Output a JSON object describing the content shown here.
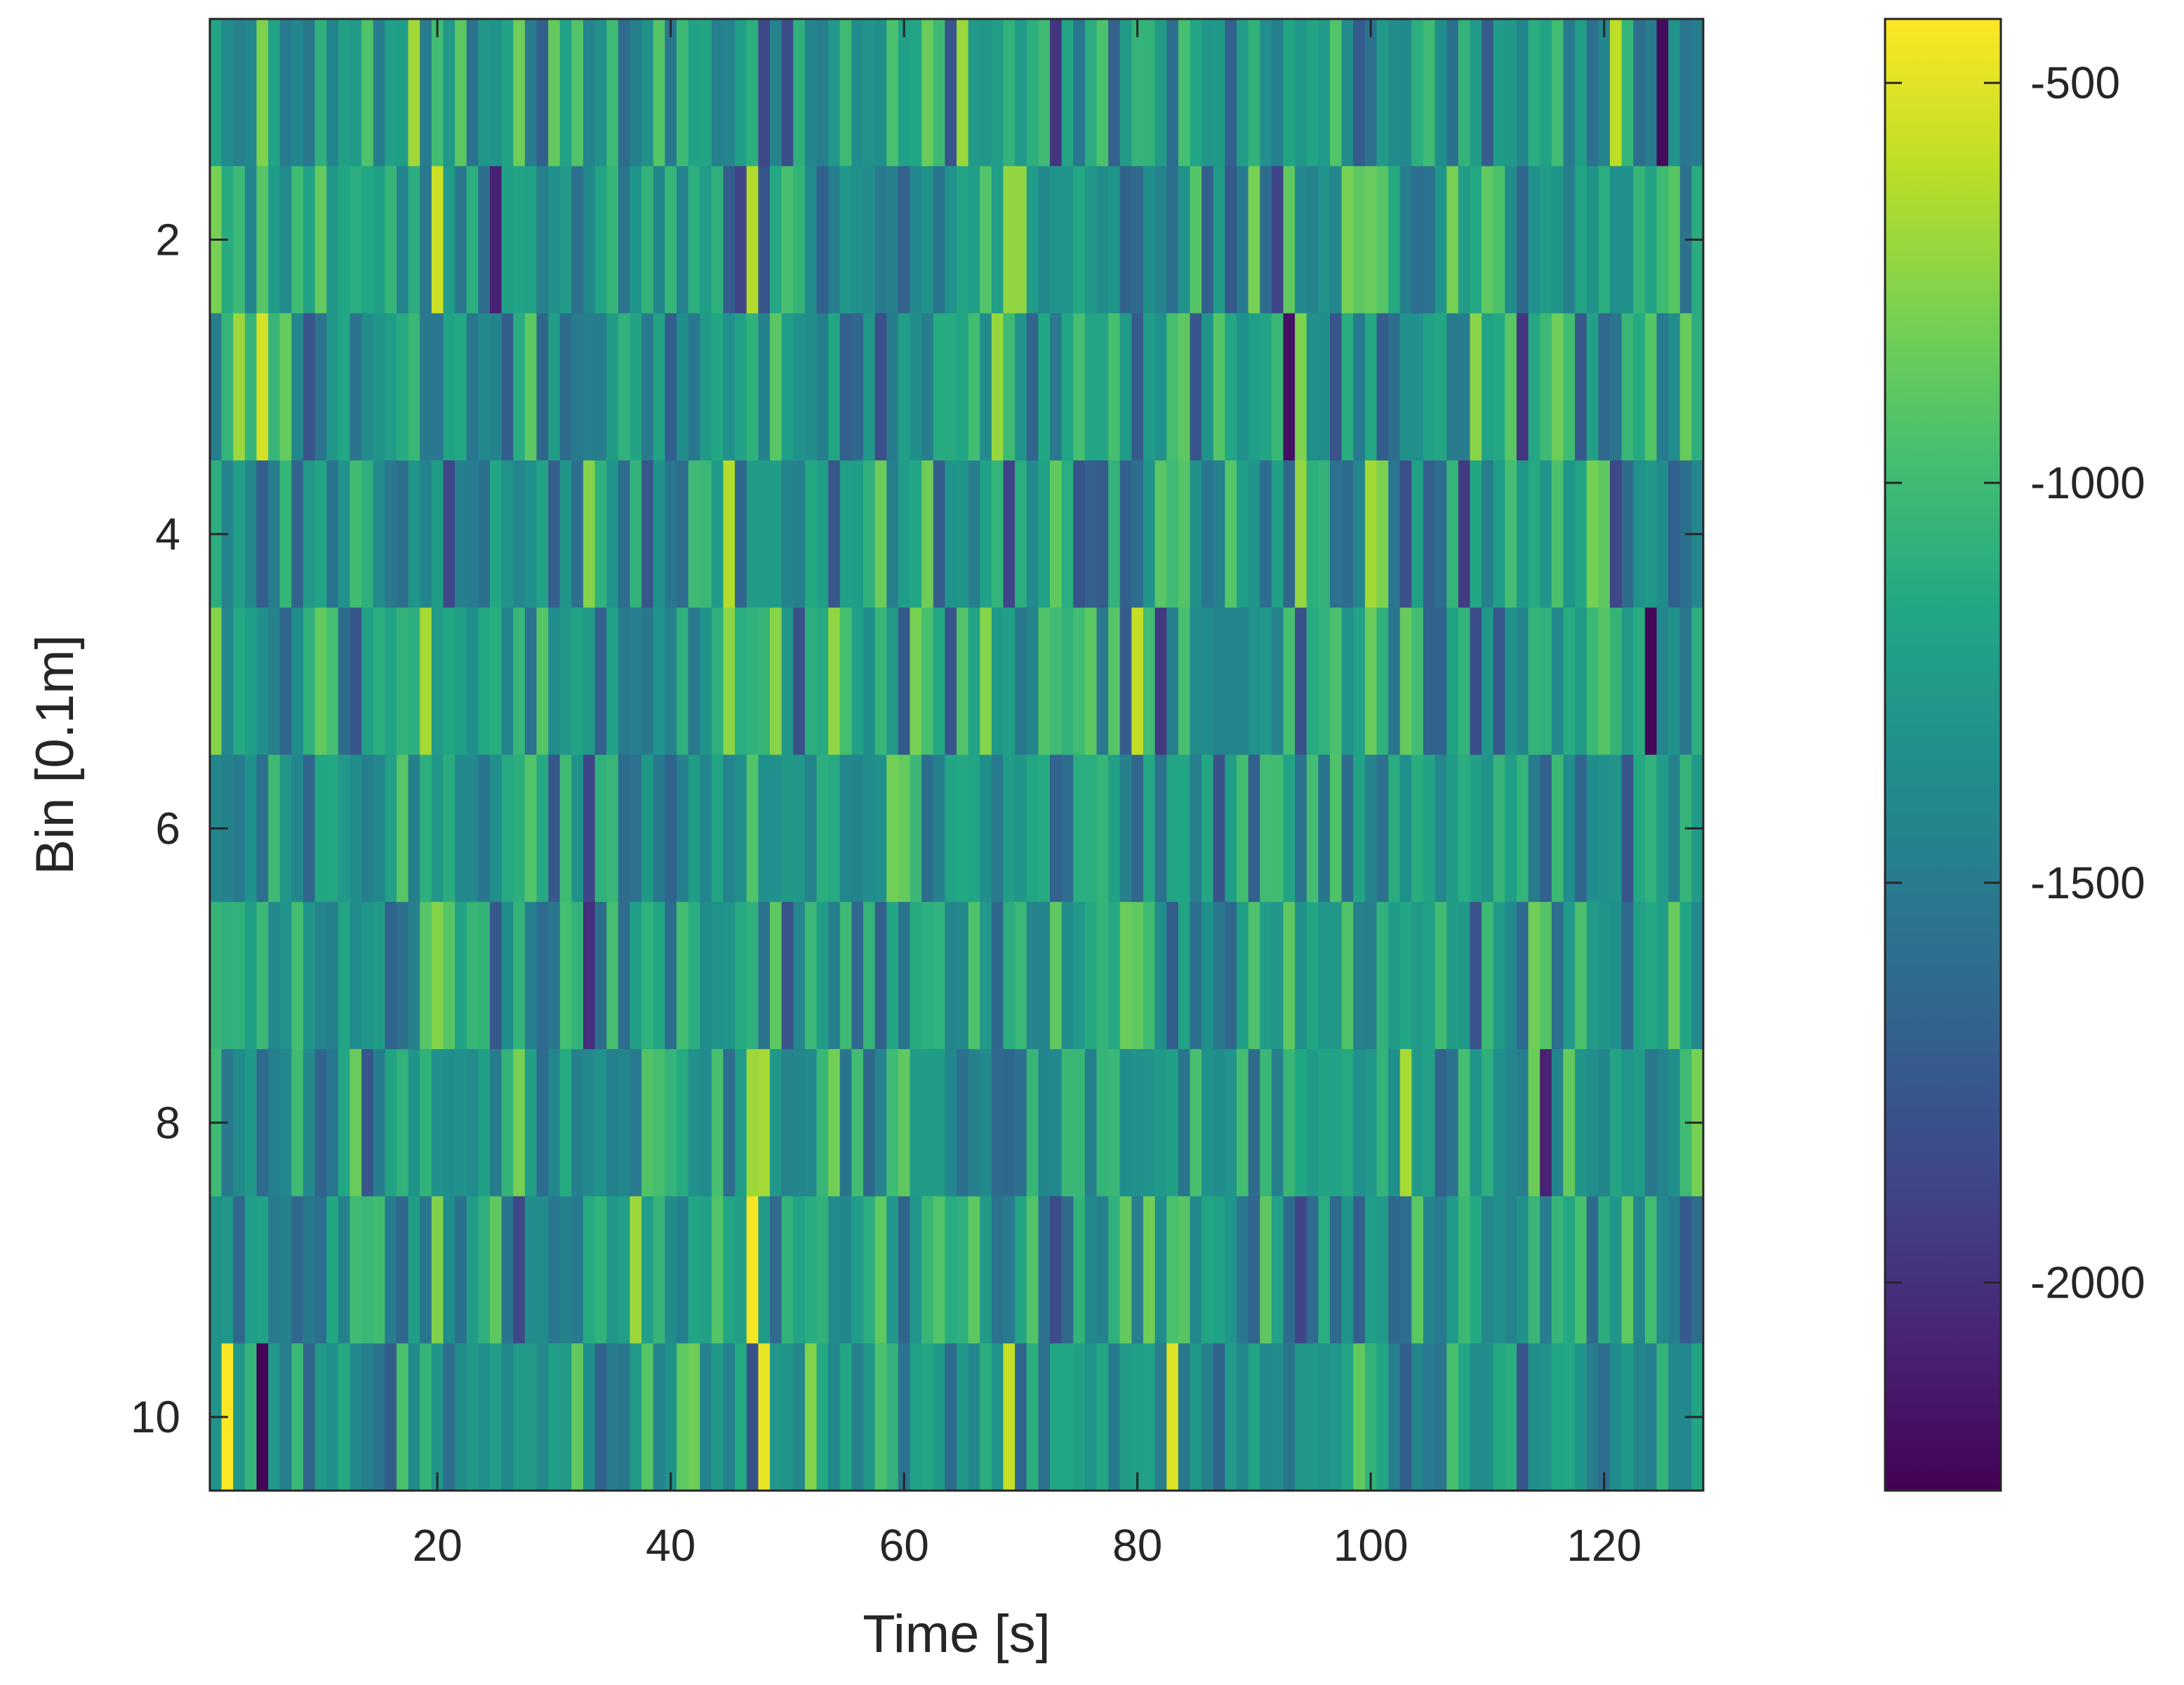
{
  "chart_data": {
    "type": "heatmap",
    "title": "",
    "xlabel": "Time [s]",
    "ylabel": "Bin [0.1m]",
    "x_range": [
      1,
      128
    ],
    "y_range": [
      1,
      10
    ],
    "x_ticks": [
      20,
      40,
      60,
      80,
      100,
      120
    ],
    "y_ticks": [
      2,
      4,
      6,
      8,
      10
    ],
    "x_tick_labels": [
      "20",
      "40",
      "60",
      "80",
      "100",
      "120"
    ],
    "y_tick_labels": [
      "2",
      "4",
      "6",
      "8",
      "10"
    ],
    "y_direction": "reversed",
    "colormap": "viridis",
    "color_limits": [
      -2260,
      -420
    ],
    "colorbar": {
      "position": "right",
      "ticks": [
        -500,
        -1000,
        -1500,
        -2000
      ],
      "tick_labels": [
        "-500",
        "-1000",
        "-1500",
        "-2000"
      ]
    },
    "grid": false,
    "notable_values": [
      {
        "x": 2,
        "y": 10,
        "value": -430
      },
      {
        "x": 5,
        "y": 10,
        "value": -2250
      },
      {
        "x": 20,
        "y": 2,
        "value": -560
      },
      {
        "x": 47,
        "y": 9,
        "value": -440
      },
      {
        "x": 48,
        "y": 10,
        "value": -480
      },
      {
        "x": 125,
        "y": 1,
        "value": -2200
      },
      {
        "x": 124,
        "y": 5,
        "value": -2230
      },
      {
        "x": 93,
        "y": 3,
        "value": -2180
      }
    ]
  }
}
